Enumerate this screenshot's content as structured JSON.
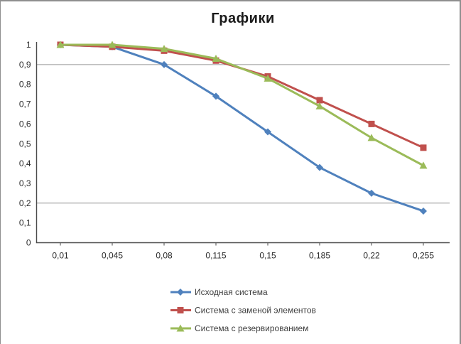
{
  "frame_border_color": "#8f8f8f",
  "chart_data": {
    "type": "line",
    "title": "Графики",
    "categories": [
      "0,01",
      "0,045",
      "0,08",
      "0,115",
      "0,15",
      "0,185",
      "0,22",
      "0,255"
    ],
    "x_numeric": [
      0.01,
      0.045,
      0.08,
      0.115,
      0.15,
      0.185,
      0.22,
      0.255
    ],
    "series": [
      {
        "name": "Исходная система",
        "color": "#4F81BD",
        "marker": "diamond",
        "values": [
          1,
          0.99,
          0.9,
          0.74,
          0.56,
          0.38,
          0.25,
          0.16
        ]
      },
      {
        "name": "Система с заменой элементов",
        "color": "#C0504D",
        "marker": "square",
        "values": [
          1,
          0.99,
          0.97,
          0.92,
          0.84,
          0.72,
          0.6,
          0.48
        ]
      },
      {
        "name": "Система с резервированием",
        "color": "#9BBB59",
        "marker": "triangle",
        "values": [
          1,
          1,
          0.98,
          0.93,
          0.83,
          0.69,
          0.53,
          0.39
        ]
      }
    ],
    "y_axis": {
      "min": 0,
      "max": 1,
      "tick_step": 0.1,
      "tick_labels": [
        "0",
        "0,1",
        "0,2",
        "0,3",
        "0,4",
        "0,5",
        "0,6",
        "0,7",
        "0,8",
        "0,9",
        "1"
      ]
    },
    "gridlines_y": [
      0.2,
      0.9
    ],
    "gridline_color": "#969696",
    "axis_color": "#4a4a4a",
    "grid": "partial-horizontal",
    "legend_position": "bottom",
    "legend": [
      "Исходная система",
      "Система с заменой элементов",
      "Система с резервированием"
    ]
  }
}
